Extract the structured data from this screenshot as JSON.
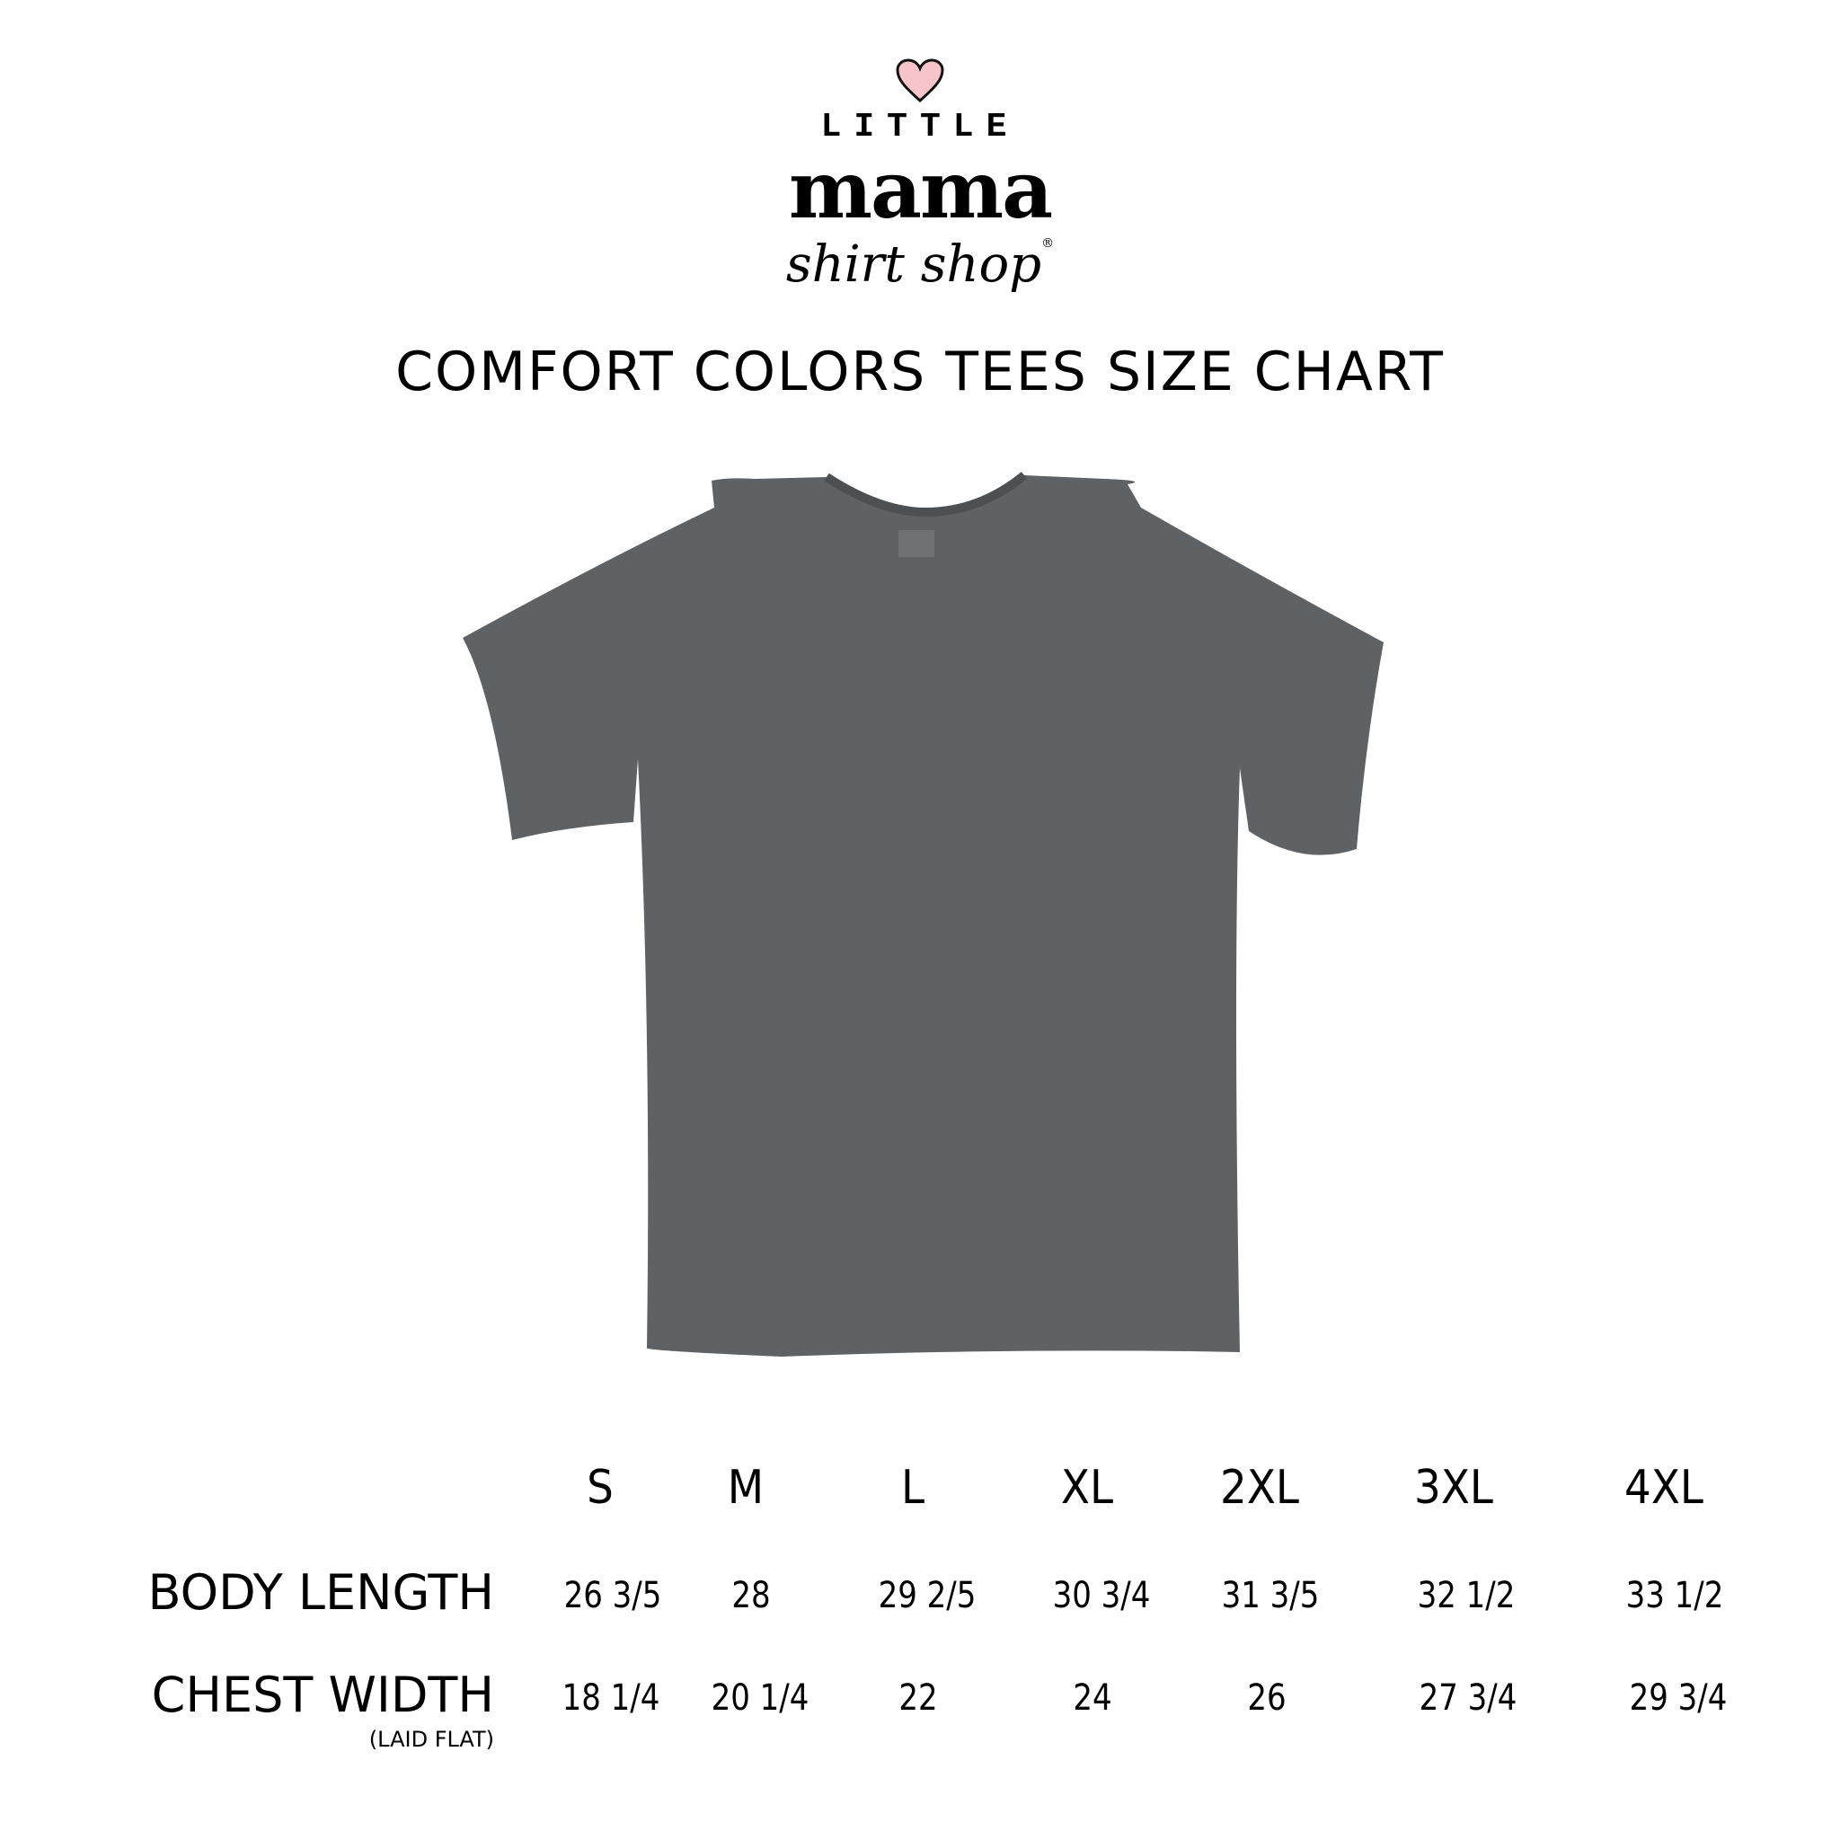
{
  "logo": {
    "top": "LITTLE",
    "main": "mama",
    "bottom": "shirt shop",
    "registered": "®",
    "heart_color": "#f7c5c9"
  },
  "title": "COMFORT COLORS TEES SIZE CHART",
  "shirt_color": "#5f6265",
  "table": {
    "sizes": [
      "S",
      "M",
      "L",
      "XL",
      "2XL",
      "3XL",
      "4XL"
    ],
    "rows": [
      {
        "label": "BODY LENGTH",
        "sublabel": "",
        "values": [
          "26 3/5",
          "28",
          "29 2/5",
          "30 3/4",
          "31 3/5",
          "32 1/2",
          "33 1/2"
        ]
      },
      {
        "label": "CHEST WIDTH",
        "sublabel": "(LAID FLAT)",
        "values": [
          "18 1/4",
          "20 1/4",
          "22",
          "24",
          "26",
          "27 3/4",
          "29 3/4"
        ]
      }
    ]
  }
}
